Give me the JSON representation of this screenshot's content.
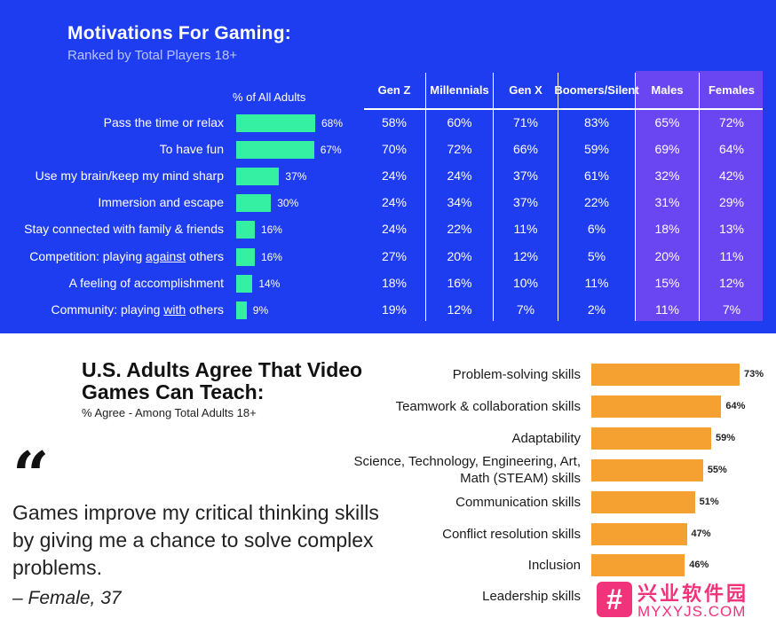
{
  "chart_data": [
    {
      "type": "table",
      "title": "Motivations For Gaming:",
      "subtitle": "Ranked by Total Players 18+",
      "bar_column_header": "% of All Adults",
      "columns": [
        "Gen Z",
        "Millennials",
        "Gen X",
        "Boomers/ Silent",
        "Males",
        "Females"
      ],
      "rows": [
        {
          "label": "Pass the time or relax",
          "all_adults": 68,
          "all_label": "68%",
          "cells": [
            "58%",
            "60%",
            "71%",
            "83%",
            "65%",
            "72%"
          ]
        },
        {
          "label": "To have fun",
          "all_adults": 67,
          "all_label": "67%",
          "cells": [
            "70%",
            "72%",
            "66%",
            "59%",
            "69%",
            "64%"
          ]
        },
        {
          "label": "Use my brain/keep my mind sharp",
          "all_adults": 37,
          "all_label": "37%",
          "cells": [
            "24%",
            "24%",
            "37%",
            "61%",
            "32%",
            "42%"
          ]
        },
        {
          "label": "Immersion and escape",
          "all_adults": 30,
          "all_label": "30%",
          "cells": [
            "24%",
            "34%",
            "37%",
            "22%",
            "31%",
            "29%"
          ]
        },
        {
          "label": "Stay connected with family & friends",
          "all_adults": 16,
          "all_label": "16%",
          "cells": [
            "24%",
            "22%",
            "11%",
            "6%",
            "18%",
            "13%"
          ]
        },
        {
          "label_pre": "Competition: playing ",
          "label_u": "against",
          "label_post": " others",
          "all_adults": 16,
          "all_label": "16%",
          "cells": [
            "27%",
            "20%",
            "12%",
            "5%",
            "20%",
            "11%"
          ]
        },
        {
          "label": "A feeling of accomplishment",
          "all_adults": 14,
          "all_label": "14%",
          "cells": [
            "18%",
            "16%",
            "10%",
            "11%",
            "15%",
            "12%"
          ]
        },
        {
          "label_pre": "Community: playing ",
          "label_u": "with",
          "label_post": " others",
          "all_adults": 9,
          "all_label": "9%",
          "cells": [
            "19%",
            "12%",
            "7%",
            "2%",
            "11%",
            "7%"
          ]
        }
      ],
      "colors": {
        "background": "#1f3df0",
        "bar": "#35f0a3",
        "gender_highlight": "#6a46f2"
      }
    },
    {
      "type": "bar",
      "orientation": "horizontal",
      "title": "U.S. Adults Agree That Video Games Can Teach:",
      "subtitle": "% Agree - Among Total Adults 18+",
      "categories": [
        "Problem-solving skills",
        "Teamwork & collaboration skills",
        "Adaptability",
        "Science, Technology, Engineering, Art, Math (STEAM) skills",
        "Communication skills",
        "Conflict resolution skills",
        "Inclusion",
        "Leadership skills"
      ],
      "category_lines": [
        [
          "Problem-solving skills"
        ],
        [
          "Teamwork & collaboration skills"
        ],
        [
          "Adaptability"
        ],
        [
          "Science, Technology, Engineering, Art,",
          "Math (STEAM) skills"
        ],
        [
          "Communication skills"
        ],
        [
          "Conflict resolution skills"
        ],
        [
          "Inclusion"
        ],
        [
          "Leadership skills"
        ]
      ],
      "values": [
        73,
        64,
        59,
        55,
        51,
        47,
        46,
        null
      ],
      "value_labels": [
        "73%",
        "64%",
        "59%",
        "55%",
        "51%",
        "47%",
        "46%",
        ""
      ],
      "colors": {
        "bar": "#f5a131"
      }
    }
  ],
  "quote": {
    "mark": "“",
    "text": "Games improve my critical thinking skills by giving me a chance to solve complex problems.",
    "attribution": "– Female, 37"
  },
  "watermark": {
    "icon": "#",
    "cn": "兴业软件园",
    "en": "MYXYJS.COM"
  }
}
